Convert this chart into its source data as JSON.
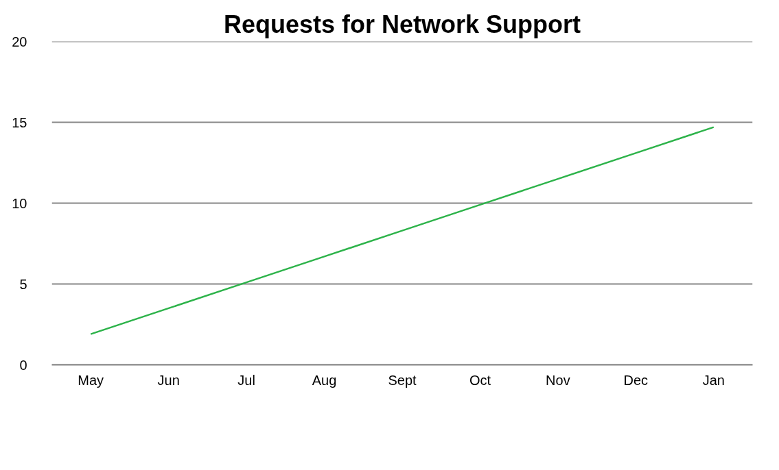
{
  "chart_data": {
    "type": "line",
    "title": "Requests for Network Support",
    "categories": [
      "May",
      "Jun",
      "Jul",
      "Aug",
      "Sept",
      "Oct",
      "Nov",
      "Dec",
      "Jan"
    ],
    "series": [
      {
        "color": "#2db34a",
        "values": [
          1.9,
          3.5,
          5.1,
          6.7,
          8.3,
          9.9,
          11.5,
          13.1,
          14.7
        ]
      }
    ],
    "ylim": [
      0,
      20
    ],
    "yticks": [
      0,
      5,
      10,
      15,
      20
    ],
    "grid": "y",
    "marker": "none",
    "line_style": "solid"
  }
}
